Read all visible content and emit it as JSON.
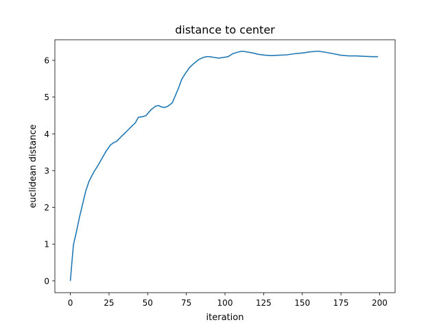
{
  "chart_data": {
    "type": "line",
    "title": "distance to center",
    "xlabel": "iteration",
    "ylabel": "euclidean distance",
    "xlim": [
      -10,
      210
    ],
    "ylim": [
      -0.32,
      6.56
    ],
    "xticks": [
      0,
      25,
      50,
      75,
      100,
      125,
      150,
      175,
      200
    ],
    "yticks": [
      0,
      1,
      2,
      3,
      4,
      5,
      6
    ],
    "grid": false,
    "legend": "none",
    "series": [
      {
        "color": "#1f77b4",
        "x": [
          0,
          1,
          2,
          4,
          6,
          8,
          10,
          12,
          15,
          18,
          20,
          23,
          26,
          28,
          30,
          33,
          36,
          39,
          42,
          44,
          47,
          49,
          52,
          55,
          57,
          59,
          61,
          63,
          66,
          68,
          70,
          72,
          74,
          77,
          80,
          83,
          86,
          88,
          90,
          93,
          96,
          99,
          102,
          105,
          108,
          111,
          114,
          118,
          122,
          126,
          130,
          135,
          140,
          145,
          150,
          155,
          160,
          165,
          170,
          175,
          180,
          185,
          190,
          195,
          199
        ],
        "y": [
          0.0,
          0.5,
          0.98,
          1.35,
          1.75,
          2.1,
          2.45,
          2.7,
          2.95,
          3.15,
          3.3,
          3.52,
          3.7,
          3.76,
          3.8,
          3.93,
          4.05,
          4.18,
          4.3,
          4.45,
          4.47,
          4.5,
          4.65,
          4.75,
          4.77,
          4.73,
          4.72,
          4.75,
          4.85,
          5.05,
          5.25,
          5.48,
          5.62,
          5.8,
          5.92,
          6.02,
          6.08,
          6.1,
          6.1,
          6.08,
          6.06,
          6.08,
          6.1,
          6.18,
          6.22,
          6.25,
          6.23,
          6.2,
          6.16,
          6.14,
          6.13,
          6.14,
          6.15,
          6.18,
          6.2,
          6.23,
          6.25,
          6.22,
          6.18,
          6.14,
          6.12,
          6.12,
          6.11,
          6.1,
          6.1
        ]
      }
    ]
  }
}
